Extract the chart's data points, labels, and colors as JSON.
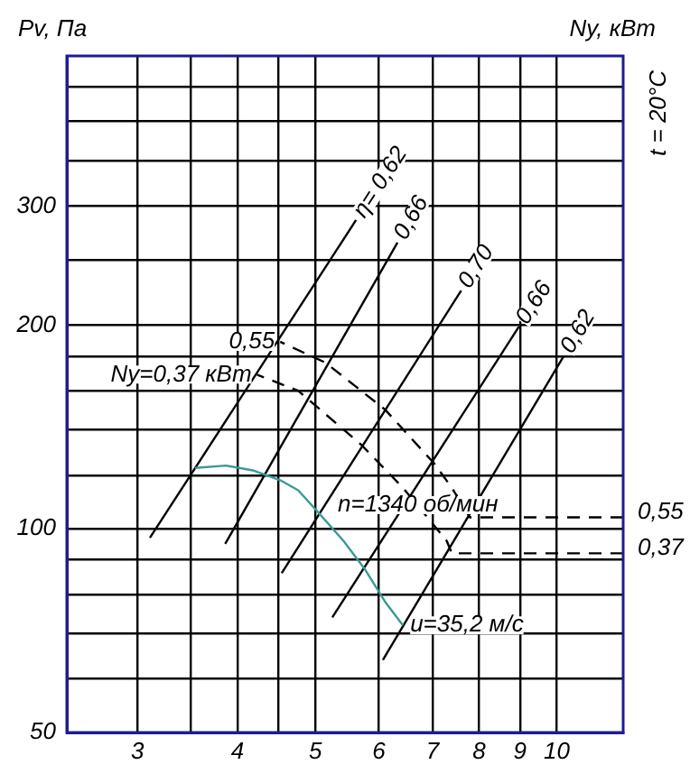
{
  "chart_data": {
    "type": "line",
    "ylabel": "Pv, Па",
    "y2label": "Ny, кВт",
    "annotations": [
      "t = 20°C",
      "n=1340 об/мин",
      {
        "text": "0,55",
        "x": 12.1,
        "y": 104
      },
      {
        "text": "0,37",
        "x": 12.1,
        "y": 92
      }
    ],
    "log": "xy",
    "xlim": [
      2.45,
      12.1
    ],
    "ylim": [
      50,
      500
    ],
    "xticks": [
      3,
      {
        "value": 3.5,
        "label": null
      },
      4,
      {
        "value": 4.5,
        "label": null
      },
      5,
      6,
      7,
      8,
      9,
      10
    ],
    "yticks": [
      50,
      {
        "value": 60,
        "label": null
      },
      {
        "value": 70,
        "label": null
      },
      {
        "value": 80,
        "label": null
      },
      {
        "value": 90,
        "label": null
      },
      100,
      {
        "value": 120,
        "label": null
      },
      {
        "value": 140,
        "label": null
      },
      {
        "value": 160,
        "label": null
      },
      {
        "value": 180,
        "label": null
      },
      200,
      {
        "value": 250,
        "label": null
      },
      300,
      {
        "value": 350,
        "label": null
      },
      {
        "value": 400,
        "label": null
      },
      {
        "value": 450,
        "label": null
      }
    ],
    "grid": true,
    "legend": false,
    "marker": "none",
    "series": [
      {
        "name": "u=35,2 м/с",
        "color": "#3a9a94",
        "line_style": "solid",
        "x": [
          3.54,
          3.87,
          4.18,
          4.52,
          4.76,
          5.07,
          5.42,
          5.77,
          6.11,
          6.43
        ],
        "values": [
          123,
          124,
          122,
          118,
          114,
          105,
          96,
          87,
          78,
          72
        ]
      },
      {
        "name": "η= 0,62",
        "color": "#000000",
        "line_style": "solid",
        "x": [
          3.11,
          5.62
        ],
        "values": [
          97,
          286
        ]
      },
      {
        "name": "0,66",
        "color": "#000000",
        "line_style": "solid",
        "x": [
          3.86,
          6.33
        ],
        "values": [
          95,
          265
        ]
      },
      {
        "name": "0,70",
        "color": "#000000",
        "line_style": "solid",
        "x": [
          4.54,
          7.6
        ],
        "values": [
          86,
          225
        ]
      },
      {
        "name": "0,66",
        "color": "#000000",
        "line_style": "solid",
        "x": [
          5.25,
          8.97
        ],
        "values": [
          74,
          199
        ]
      },
      {
        "name": "0,62",
        "color": "#000000",
        "line_style": "solid",
        "x": [
          6.07,
          10.2
        ],
        "values": [
          64,
          180
        ]
      },
      {
        "name": "0,55",
        "color": "#000000",
        "line_style": "dashed",
        "x": [
          12.1,
          7.79,
          7.4,
          7.03,
          6.11,
          5.15,
          4.52
        ],
        "values": [
          104,
          104,
          115,
          125,
          150,
          176,
          189
        ]
      },
      {
        "name": "Ny=0,37 кВт",
        "color": "#000000",
        "line_style": "dashed",
        "x": [
          12.1,
          7.4,
          7.29,
          6.43,
          5.71,
          4.76,
          4.23
        ],
        "values": [
          92,
          92,
          96,
          115,
          133,
          160,
          169
        ]
      }
    ]
  }
}
